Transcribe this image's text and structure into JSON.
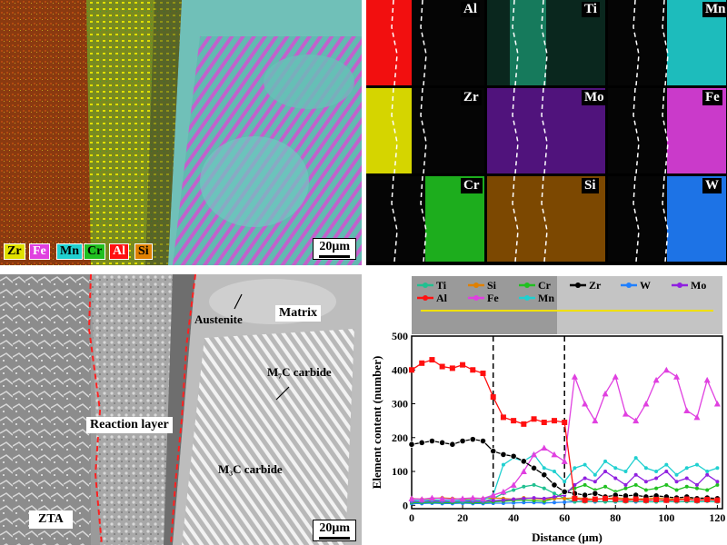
{
  "colors": {
    "Zr": "#e0e000",
    "Fe": "#e040e0",
    "Mn": "#20d0d0",
    "Cr": "#20c020",
    "Al": "#ff1010",
    "Si": "#e08000",
    "Ti": "#20c090",
    "Mo": "#9020e0",
    "W": "#2080ff",
    "dash": "#000000",
    "redline": "#ff2020"
  },
  "panel_a": {
    "legend": [
      "Zr",
      "Fe",
      "Mn",
      "Cr",
      "Al",
      "Si"
    ],
    "scale": "20μm"
  },
  "panel_b": {
    "maps": [
      "Al",
      "Ti",
      "Mn",
      "Zr",
      "Mo",
      "Fe",
      "Cr",
      "Si",
      "W"
    ]
  },
  "panel_c": {
    "labels": {
      "austenite": "Austenite",
      "matrix": "Matrix",
      "m7c3": "M₇C carbide",
      "m3c": "M₃C carbide",
      "reaction": "Reaction layer",
      "zta": "ZTA"
    },
    "scale": "20μm"
  },
  "chart_data": {
    "type": "line",
    "xlabel": "Distance (μm)",
    "ylabel": "Element content (number)",
    "xlim": [
      0,
      122
    ],
    "ylim": [
      -10,
      500
    ],
    "xticks": [
      0,
      20,
      40,
      60,
      80,
      100,
      120
    ],
    "yticks": [
      0,
      100,
      200,
      300,
      400,
      500
    ],
    "boundaries": [
      32,
      60
    ],
    "legend_row1": [
      "Ti",
      "Si",
      "Cr",
      "Zr",
      "W",
      "Mo"
    ],
    "legend_row2": [
      "Al",
      "Fe",
      "Mn"
    ],
    "x": [
      0,
      4,
      8,
      12,
      16,
      20,
      24,
      28,
      32,
      36,
      40,
      44,
      48,
      52,
      56,
      60,
      64,
      68,
      72,
      76,
      80,
      84,
      88,
      92,
      96,
      100,
      104,
      108,
      112,
      116,
      120
    ],
    "series": [
      {
        "name": "Al",
        "values": [
          400,
          420,
          430,
          410,
          405,
          415,
          400,
          390,
          320,
          260,
          250,
          240,
          255,
          245,
          250,
          245,
          20,
          15,
          18,
          20,
          18,
          15,
          18,
          15,
          17,
          15,
          16,
          18,
          15,
          17,
          15
        ]
      },
      {
        "name": "Zr",
        "values": [
          180,
          185,
          190,
          185,
          180,
          190,
          195,
          190,
          160,
          150,
          145,
          130,
          110,
          90,
          60,
          40,
          35,
          30,
          35,
          25,
          30,
          28,
          30,
          25,
          28,
          25,
          22,
          25,
          20,
          22,
          20
        ]
      },
      {
        "name": "Fe",
        "values": [
          20,
          18,
          22,
          20,
          18,
          20,
          22,
          20,
          30,
          40,
          60,
          100,
          150,
          170,
          150,
          130,
          380,
          300,
          250,
          330,
          380,
          270,
          250,
          300,
          370,
          400,
          380,
          280,
          260,
          370,
          300
        ]
      },
      {
        "name": "Mn",
        "values": [
          15,
          14,
          16,
          15,
          14,
          15,
          16,
          15,
          30,
          120,
          140,
          130,
          150,
          110,
          100,
          70,
          110,
          120,
          90,
          130,
          110,
          100,
          140,
          110,
          100,
          120,
          90,
          110,
          120,
          100,
          110
        ]
      },
      {
        "name": "Si",
        "values": [
          20,
          18,
          20,
          22,
          20,
          18,
          20,
          20,
          22,
          20,
          18,
          22,
          20,
          18,
          20,
          20,
          22,
          20,
          18,
          20,
          22,
          20,
          18,
          20,
          22,
          20,
          18,
          20,
          22,
          20,
          18
        ]
      },
      {
        "name": "Ti",
        "values": [
          10,
          10,
          12,
          10,
          11,
          10,
          12,
          10,
          20,
          35,
          45,
          55,
          60,
          50,
          35,
          20,
          10,
          10,
          12,
          10,
          11,
          10,
          12,
          10,
          10,
          12,
          10,
          11,
          10,
          12,
          10
        ]
      },
      {
        "name": "Cr",
        "values": [
          8,
          8,
          9,
          8,
          8,
          9,
          8,
          8,
          10,
          12,
          14,
          16,
          14,
          12,
          20,
          40,
          50,
          60,
          45,
          55,
          40,
          50,
          60,
          45,
          50,
          60,
          45,
          55,
          50,
          45,
          60
        ]
      },
      {
        "name": "W",
        "values": [
          5,
          5,
          6,
          5,
          5,
          6,
          5,
          5,
          6,
          6,
          7,
          8,
          8,
          7,
          8,
          9,
          10,
          12,
          10,
          11,
          10,
          12,
          10,
          11,
          10,
          12,
          10,
          11,
          10,
          12,
          10
        ]
      },
      {
        "name": "Mo",
        "values": [
          12,
          12,
          13,
          12,
          12,
          13,
          12,
          12,
          14,
          15,
          18,
          20,
          22,
          20,
          25,
          30,
          60,
          80,
          70,
          100,
          80,
          60,
          90,
          70,
          80,
          100,
          70,
          80,
          60,
          90,
          70
        ]
      }
    ]
  }
}
